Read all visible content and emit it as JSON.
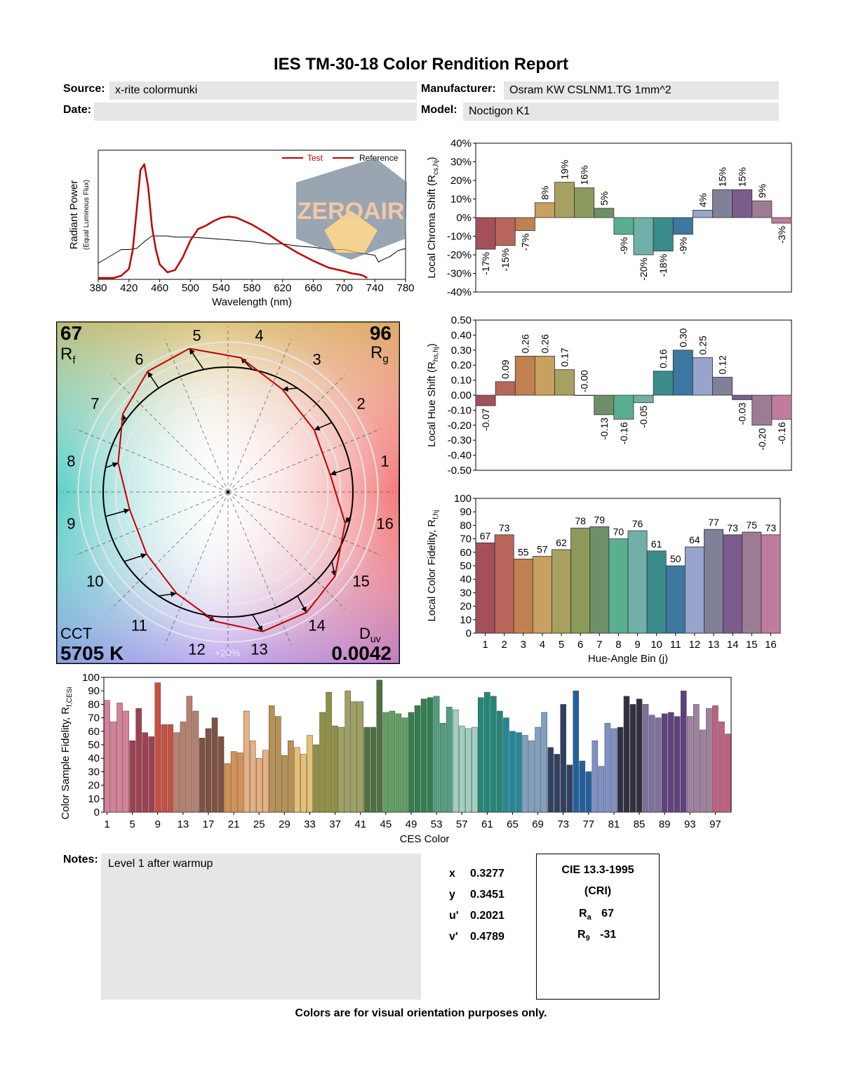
{
  "report": {
    "title": "IES TM-30-18 Color Rendition Report",
    "source_label": "Source:",
    "source_value": "x-rite colormunki",
    "manufacturer_label": "Manufacturer:",
    "manufacturer_value": "Osram KW CSLNM1.TG 1mm^2",
    "date_label": "Date:",
    "date_value": "",
    "model_label": "Model:",
    "model_value": "Noctigon K1",
    "notes_label": "Notes:",
    "notes_value": "Level 1 after warmup",
    "footer": "Colors are for visual orientation purposes only."
  },
  "chromaticity": {
    "x_label": "x",
    "x_value": "0.3277",
    "y_label": "y",
    "y_value": "0.3451",
    "u_label": "u'",
    "u_value": "0.2021",
    "v_label": "v'",
    "v_value": "0.4789"
  },
  "cri": {
    "title": "CIE 13.3-1995",
    "subtitle": "(CRI)",
    "ra_label": "R",
    "ra_sub": "a",
    "ra_value": "67",
    "r9_label": "R",
    "r9_sub": "9",
    "r9_value": "-31"
  },
  "watermark": {
    "text": "ZEROAIR"
  },
  "colors": {
    "hue_bins": [
      "#a3505a",
      "#b8665a",
      "#c08050",
      "#c8a060",
      "#a8a060",
      "#8c9a5c",
      "#6e9068",
      "#58b090",
      "#70b0a8",
      "#3c8c8c",
      "#3c78a0",
      "#98a4cc",
      "#808098",
      "#7c5c8c",
      "#9c7c94",
      "#c07c9c"
    ],
    "test": "#c00000",
    "reference": "#000000"
  },
  "chart_data": [
    {
      "type": "line",
      "id": "spectrum",
      "xlabel": "Wavelength (nm)",
      "ylabel": "Radiant Power",
      "ylabel_sub": "(Equal Luminous Flux)",
      "xlim": [
        380,
        780
      ],
      "xticks": [
        "380",
        "420",
        "460",
        "500",
        "540",
        "580",
        "620",
        "660",
        "700",
        "740",
        "780"
      ],
      "series": [
        {
          "name": "Test",
          "x": [
            380,
            390,
            400,
            410,
            420,
            425,
            430,
            435,
            440,
            445,
            450,
            455,
            460,
            470,
            480,
            490,
            500,
            510,
            520,
            530,
            540,
            550,
            560,
            580,
            600,
            620,
            640,
            660,
            680,
            700,
            710,
            720,
            725,
            730
          ],
          "y": [
            0,
            0,
            0,
            0.02,
            0.08,
            0.25,
            0.6,
            0.95,
            1.0,
            0.8,
            0.45,
            0.25,
            0.12,
            0.05,
            0.07,
            0.18,
            0.33,
            0.43,
            0.46,
            0.5,
            0.53,
            0.54,
            0.53,
            0.47,
            0.39,
            0.3,
            0.22,
            0.15,
            0.09,
            0.06,
            0.04,
            0.03,
            0.02,
            0.0
          ]
        },
        {
          "name": "Reference",
          "x": [
            380,
            390,
            400,
            410,
            420,
            430,
            440,
            450,
            460,
            470,
            480,
            500,
            520,
            540,
            560,
            580,
            600,
            620,
            640,
            660,
            680,
            700,
            720,
            740,
            745,
            750,
            760,
            770,
            780
          ],
          "y": [
            0.13,
            0.17,
            0.21,
            0.25,
            0.25,
            0.26,
            0.32,
            0.37,
            0.37,
            0.37,
            0.36,
            0.36,
            0.35,
            0.34,
            0.33,
            0.32,
            0.3,
            0.3,
            0.28,
            0.27,
            0.25,
            0.25,
            0.22,
            0.2,
            0.14,
            0.16,
            0.19,
            0.24,
            0.26
          ]
        }
      ]
    },
    {
      "type": "bar",
      "id": "chroma-shift",
      "ylabel": "Local Chroma Shift (R",
      "ylabel_sub": "cs,hj",
      "ylim": [
        -40,
        40
      ],
      "yticks": [
        "40%",
        "30%",
        "20%",
        "10%",
        "0%",
        "-10%",
        "-20%",
        "-30%",
        "-40%"
      ],
      "categories": [
        "1",
        "2",
        "3",
        "4",
        "5",
        "6",
        "7",
        "8",
        "9",
        "10",
        "11",
        "12",
        "13",
        "14",
        "15",
        "16"
      ],
      "values": [
        -17,
        -15,
        -7,
        8,
        19,
        16,
        5,
        -9,
        -20,
        -18,
        -9,
        4,
        15,
        15,
        9,
        -3
      ],
      "labels": [
        "-17%",
        "-15%",
        "-7%",
        "8%",
        "19%",
        "16%",
        "5%",
        "-9%",
        "-20%",
        "-18%",
        "-9%",
        "4%",
        "15%",
        "15%",
        "9%",
        "-3%"
      ]
    },
    {
      "type": "bar",
      "id": "hue-shift",
      "ylabel": "Local Hue Shift (R",
      "ylabel_sub": "hs,hj",
      "ylim": [
        -0.5,
        0.5
      ],
      "yticks": [
        "0.50",
        "0.40",
        "0.30",
        "0.20",
        "0.10",
        "0.00",
        "-0.10",
        "-0.20",
        "-0.30",
        "-0.40",
        "-0.50"
      ],
      "categories": [
        "1",
        "2",
        "3",
        "4",
        "5",
        "6",
        "7",
        "8",
        "9",
        "10",
        "11",
        "12",
        "13",
        "14",
        "15",
        "16"
      ],
      "values": [
        -0.07,
        0.09,
        0.26,
        0.26,
        0.17,
        -0.0,
        -0.13,
        -0.16,
        -0.05,
        0.16,
        0.3,
        0.25,
        0.12,
        -0.03,
        -0.2,
        -0.16
      ],
      "labels": [
        "-0.07",
        "0.09",
        "0.26",
        "0.26",
        "0.17",
        "-0.00",
        "-0.13",
        "-0.16",
        "-0.05",
        "0.16",
        "0.30",
        "0.25",
        "0.12",
        "-0.03",
        "-0.20",
        "-0.16"
      ]
    },
    {
      "type": "bar",
      "id": "fidelity",
      "xlabel": "Hue-Angle Bin (j)",
      "ylabel": "Local Color Fidelity, R",
      "ylabel_sub": "f,hj",
      "ylim": [
        0,
        100
      ],
      "yticks": [
        "100",
        "90",
        "80",
        "70",
        "60",
        "50",
        "40",
        "30",
        "20",
        "10",
        "0"
      ],
      "categories": [
        "1",
        "2",
        "3",
        "4",
        "5",
        "6",
        "7",
        "8",
        "9",
        "10",
        "11",
        "12",
        "13",
        "14",
        "15",
        "16"
      ],
      "values": [
        67,
        73,
        55,
        57,
        62,
        78,
        79,
        70,
        76,
        61,
        50,
        64,
        77,
        73,
        75,
        73
      ]
    },
    {
      "type": "bar",
      "id": "ces-fidelity",
      "xlabel": "CES Color",
      "ylabel": "Color Sample Fidelity, R",
      "ylabel_sub": "f,CESi",
      "ylim": [
        0,
        100
      ],
      "yticks": [
        "100",
        "90",
        "80",
        "70",
        "60",
        "50",
        "40",
        "30",
        "20",
        "10",
        "0"
      ],
      "xticks": [
        "1",
        "5",
        "9",
        "13",
        "17",
        "21",
        "25",
        "29",
        "33",
        "37",
        "41",
        "45",
        "49",
        "53",
        "57",
        "61",
        "65",
        "69",
        "73",
        "77",
        "81",
        "85",
        "89",
        "93",
        "97"
      ],
      "values": [
        83,
        67,
        81,
        75,
        53,
        77,
        59,
        56,
        96,
        65,
        65,
        59,
        67,
        86,
        75,
        55,
        62,
        70,
        56,
        36,
        45,
        44,
        75,
        53,
        40,
        46,
        79,
        71,
        42,
        53,
        48,
        43,
        57,
        50,
        74,
        89,
        64,
        63,
        90,
        82,
        82,
        63,
        63,
        98,
        74,
        75,
        73,
        70,
        74,
        79,
        84,
        85,
        86,
        66,
        78,
        76,
        64,
        62,
        63,
        85,
        89,
        86,
        75,
        70,
        60,
        59,
        57,
        53,
        63,
        74,
        48,
        43,
        80,
        35,
        90,
        38,
        30,
        53,
        34,
        66,
        62,
        63,
        86,
        80,
        84,
        80,
        72,
        70,
        73,
        74,
        71,
        90,
        71,
        80,
        61,
        77,
        79,
        67,
        58
      ]
    },
    {
      "type": "scatter",
      "id": "color-vector-graphic",
      "values": {
        "Rf": "67",
        "Rg": "96",
        "CCT": "5705 K",
        "Duv": "0.0042"
      },
      "labels": {
        "Rf": "R",
        "Rf_sub": "f",
        "Rg": "R",
        "Rg_sub": "g",
        "CCT": "CCT",
        "Duv": "D",
        "Duv_sub": "uv",
        "pct": "+20%"
      },
      "bins": [
        "1",
        "2",
        "3",
        "4",
        "5",
        "6",
        "7",
        "8",
        "9",
        "10",
        "11",
        "12",
        "13",
        "14",
        "15",
        "16"
      ],
      "relative_chroma": [
        0.83,
        0.85,
        0.93,
        1.08,
        1.19,
        1.16,
        1.05,
        0.91,
        0.8,
        0.82,
        0.91,
        1.04,
        1.15,
        1.15,
        1.09,
        0.97
      ],
      "hue_shift": [
        -0.07,
        0.09,
        0.26,
        0.26,
        0.17,
        0.0,
        -0.13,
        -0.16,
        -0.05,
        0.16,
        0.3,
        0.25,
        0.12,
        -0.03,
        -0.2,
        -0.16
      ]
    }
  ]
}
